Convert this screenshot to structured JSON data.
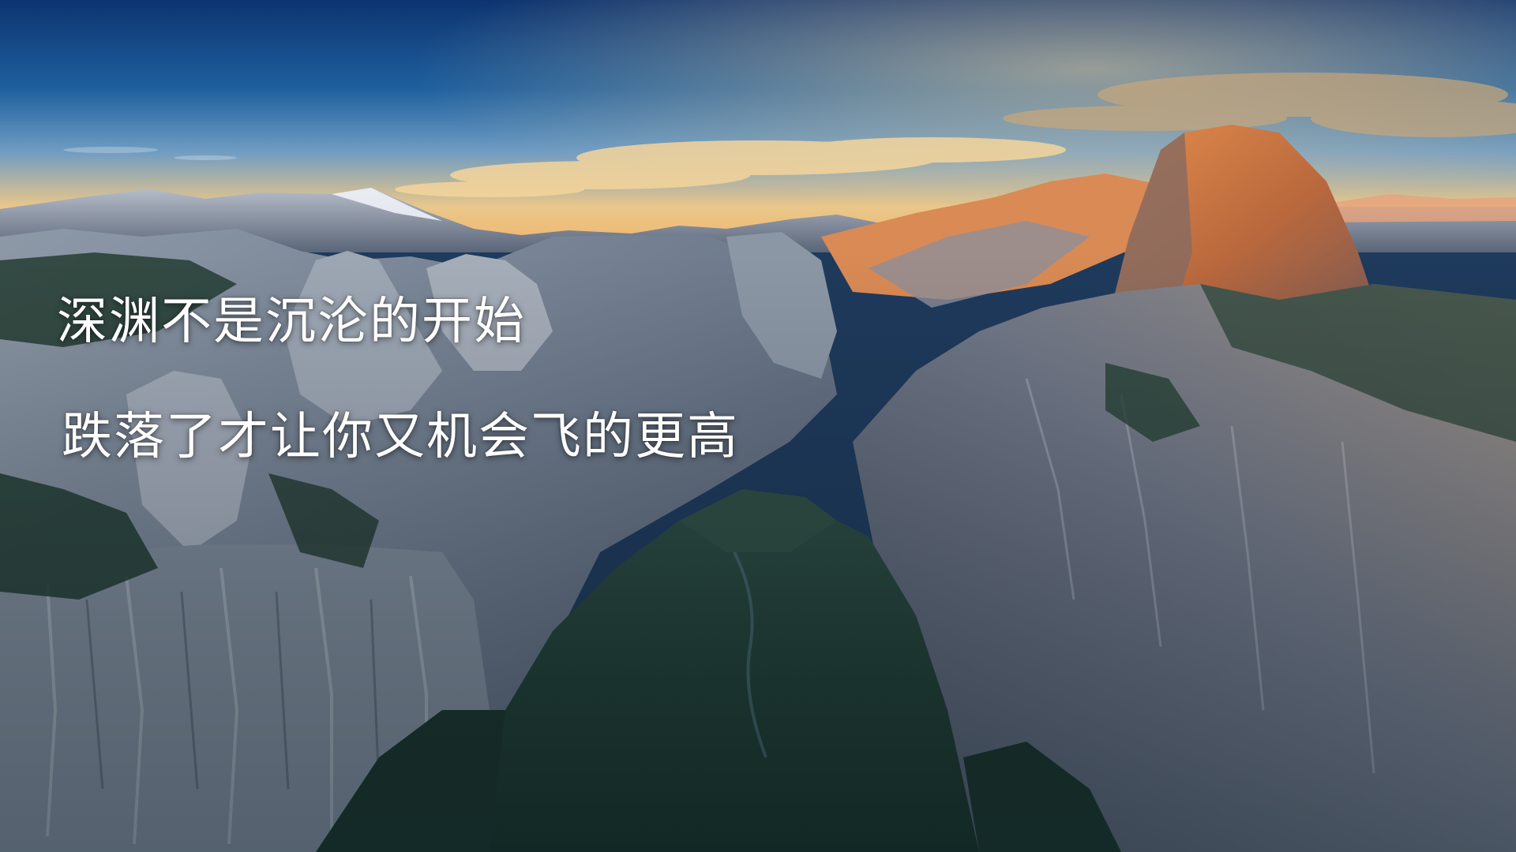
{
  "slide": {
    "caption_line_1": "深渊不是沉沦的开始",
    "caption_line_2": "跌落了才让你又机会飞的更高"
  },
  "colors": {
    "caption_text": "#ffffff",
    "sky_top": "#0f3a78",
    "sky_horizon": "#f2c27a",
    "granite": "#7d8a9a",
    "forest": "#1e3b32",
    "sunlit_rock": "#d9894a"
  }
}
